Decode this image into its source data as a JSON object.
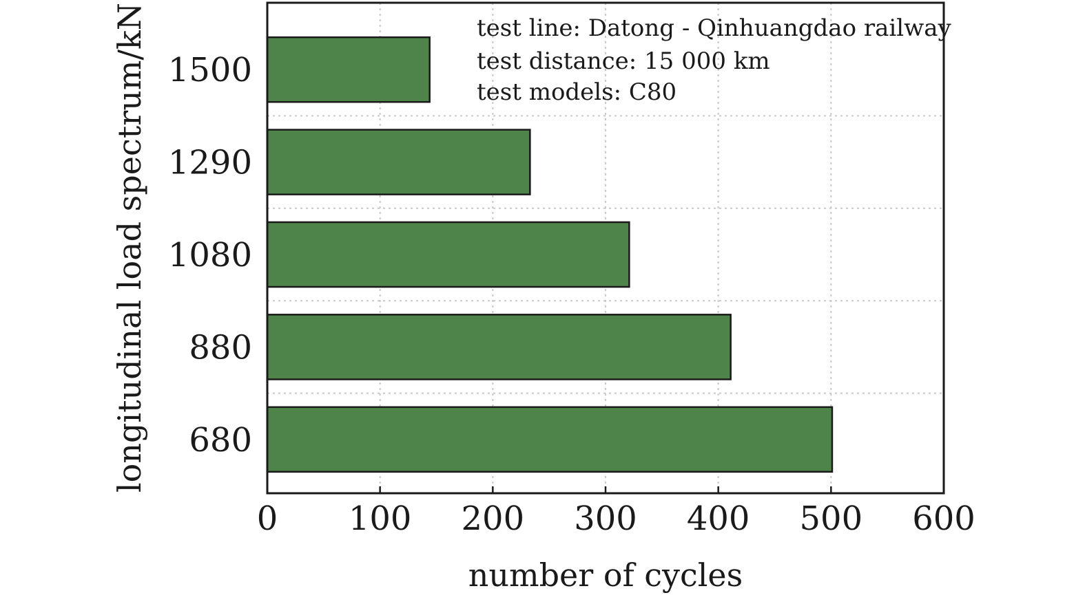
{
  "chart_data": {
    "type": "bar",
    "orientation": "horizontal",
    "categories": [
      "1500",
      "1290",
      "1080",
      "880",
      "680"
    ],
    "values": [
      144,
      233,
      321,
      411,
      501
    ],
    "xlabel": "number of cycles",
    "ylabel": "longitudinal load spectrum/kN",
    "xlim": [
      0,
      600
    ],
    "xticks": [
      "0",
      "100",
      "200",
      "300",
      "400",
      "500",
      "600"
    ],
    "grid": true,
    "bar_color": "#4e8449",
    "annotations": [
      "test line: Datong - Qinhuangdao railway",
      "test distance: 15 000 km",
      "test models: C80"
    ]
  }
}
